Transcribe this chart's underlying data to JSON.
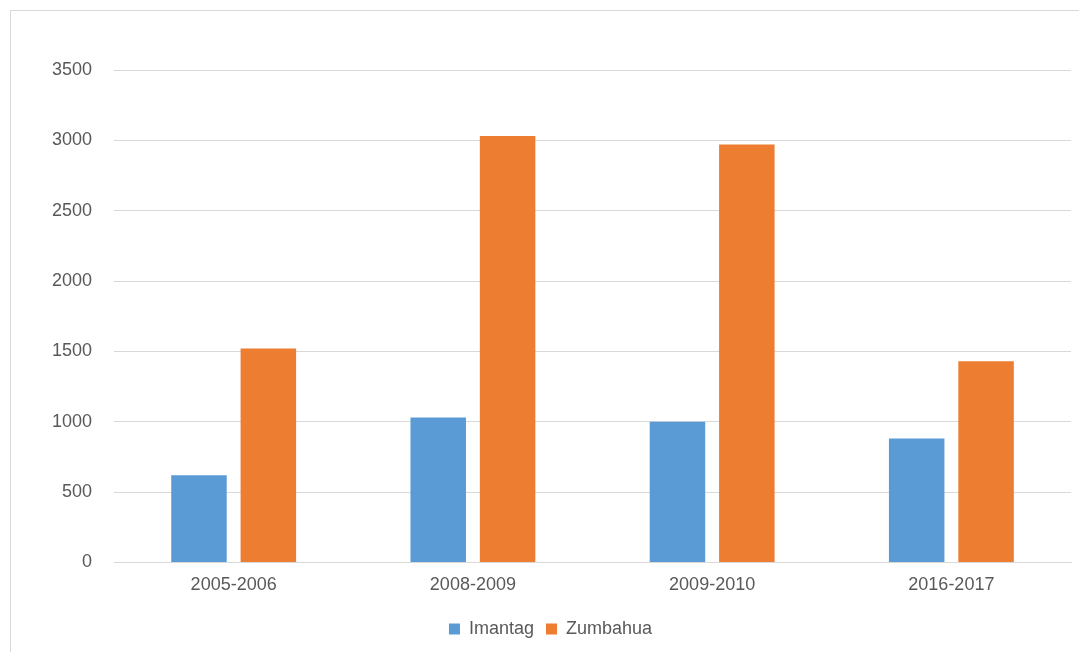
{
  "chart_data": {
    "type": "bar",
    "categories": [
      "2005-2006",
      "2008-2009",
      "2009-2010",
      "2016-2017"
    ],
    "series": [
      {
        "name": "Imantag",
        "color": "#5b9bd5",
        "values": [
          620,
          1030,
          1000,
          880
        ]
      },
      {
        "name": "Zumbahua",
        "color": "#ed7d31",
        "values": [
          1520,
          3030,
          2970,
          1430
        ]
      }
    ],
    "ylim": [
      0,
      3500
    ],
    "yticks": [
      0,
      500,
      1000,
      1500,
      2000,
      2500,
      3000,
      3500
    ],
    "grid": "y",
    "legend": "bottom"
  }
}
